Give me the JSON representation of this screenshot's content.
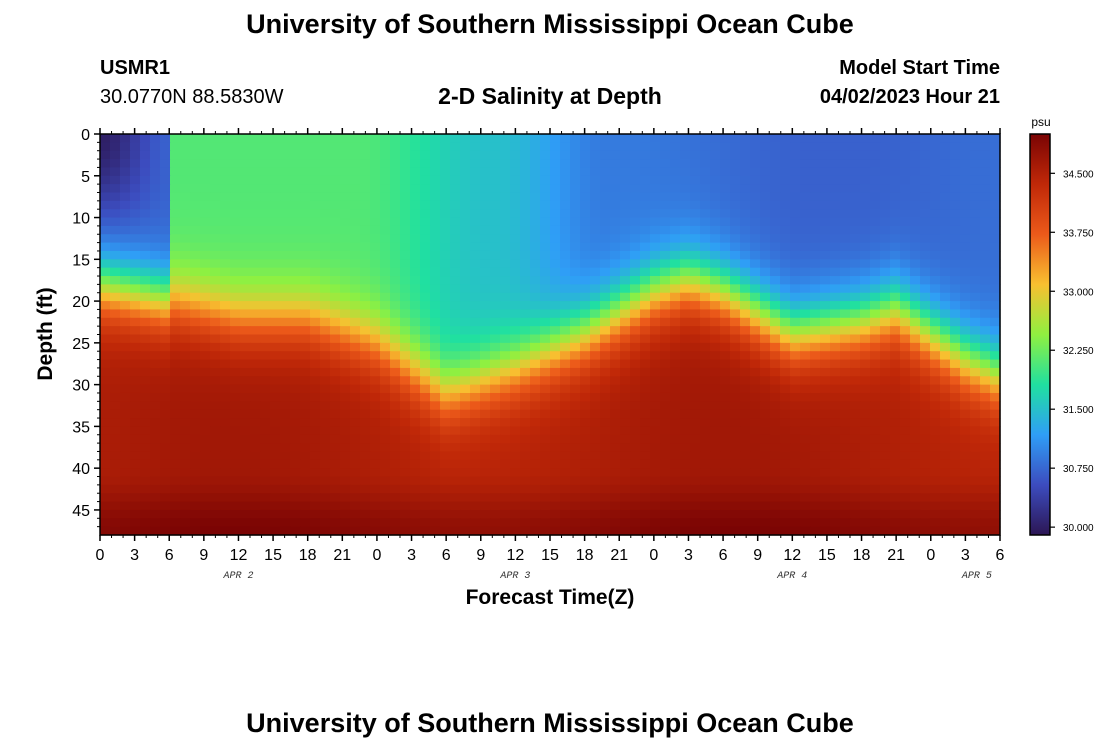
{
  "header": {
    "title": "University of Southern Mississippi Ocean Cube",
    "station_id": "USMR1",
    "station_coords": "30.0770N  88.5830W",
    "plot_title": "2-D Salinity at Depth",
    "model_start_label": "Model Start Time",
    "model_start_value": "04/02/2023 Hour 21"
  },
  "footer": {
    "title": "University of Southern Mississippi Ocean Cube"
  },
  "chart_data": {
    "type": "heatmap",
    "title": "2-D Salinity at Depth",
    "xlabel": "Forecast Time(Z)",
    "ylabel": "Depth (ft)",
    "x_hours_range": [
      0,
      78
    ],
    "ylim": [
      0,
      48
    ],
    "x_ticks": [
      {
        "hour": 0,
        "label": "0"
      },
      {
        "hour": 3,
        "label": "3"
      },
      {
        "hour": 6,
        "label": "6"
      },
      {
        "hour": 9,
        "label": "9"
      },
      {
        "hour": 12,
        "label": "12"
      },
      {
        "hour": 15,
        "label": "15"
      },
      {
        "hour": 18,
        "label": "18"
      },
      {
        "hour": 21,
        "label": "21"
      },
      {
        "hour": 24,
        "label": "0"
      },
      {
        "hour": 27,
        "label": "3"
      },
      {
        "hour": 30,
        "label": "6"
      },
      {
        "hour": 33,
        "label": "9"
      },
      {
        "hour": 36,
        "label": "12"
      },
      {
        "hour": 39,
        "label": "15"
      },
      {
        "hour": 42,
        "label": "18"
      },
      {
        "hour": 45,
        "label": "21"
      },
      {
        "hour": 48,
        "label": "0"
      },
      {
        "hour": 51,
        "label": "3"
      },
      {
        "hour": 54,
        "label": "6"
      },
      {
        "hour": 57,
        "label": "9"
      },
      {
        "hour": 60,
        "label": "12"
      },
      {
        "hour": 63,
        "label": "15"
      },
      {
        "hour": 66,
        "label": "18"
      },
      {
        "hour": 69,
        "label": "21"
      },
      {
        "hour": 72,
        "label": "0"
      },
      {
        "hour": 75,
        "label": "3"
      },
      {
        "hour": 78,
        "label": "6"
      }
    ],
    "day_labels": [
      {
        "hour": 12,
        "label": "APR 2"
      },
      {
        "hour": 36,
        "label": "APR 3"
      },
      {
        "hour": 60,
        "label": "APR 4"
      },
      {
        "hour": 76,
        "label": "APR 5"
      }
    ],
    "y_ticks": [
      0,
      5,
      10,
      15,
      20,
      25,
      30,
      35,
      40,
      45
    ],
    "halocline_depth_ft": [
      [
        0,
        18
      ],
      [
        6,
        20
      ],
      [
        12,
        22
      ],
      [
        18,
        22
      ],
      [
        24,
        25
      ],
      [
        30,
        31
      ],
      [
        36,
        28
      ],
      [
        42,
        24
      ],
      [
        48,
        19
      ],
      [
        51,
        17.5
      ],
      [
        54,
        19
      ],
      [
        60,
        24
      ],
      [
        66,
        22.5
      ],
      [
        69,
        21
      ],
      [
        72,
        24
      ],
      [
        75,
        27
      ],
      [
        78,
        29
      ]
    ],
    "colorbar": {
      "unit": "psu",
      "min": 29.9,
      "max": 35.0,
      "ticks": [
        "30.000",
        "30.750",
        "31.500",
        "32.250",
        "33.000",
        "33.750",
        "34.500"
      ],
      "palette": [
        "#2c1654",
        "#3c4cbf",
        "#2f9ef6",
        "#20e0a0",
        "#90f040",
        "#f8c030",
        "#ec5a1a",
        "#c02808",
        "#7a0404"
      ]
    }
  }
}
